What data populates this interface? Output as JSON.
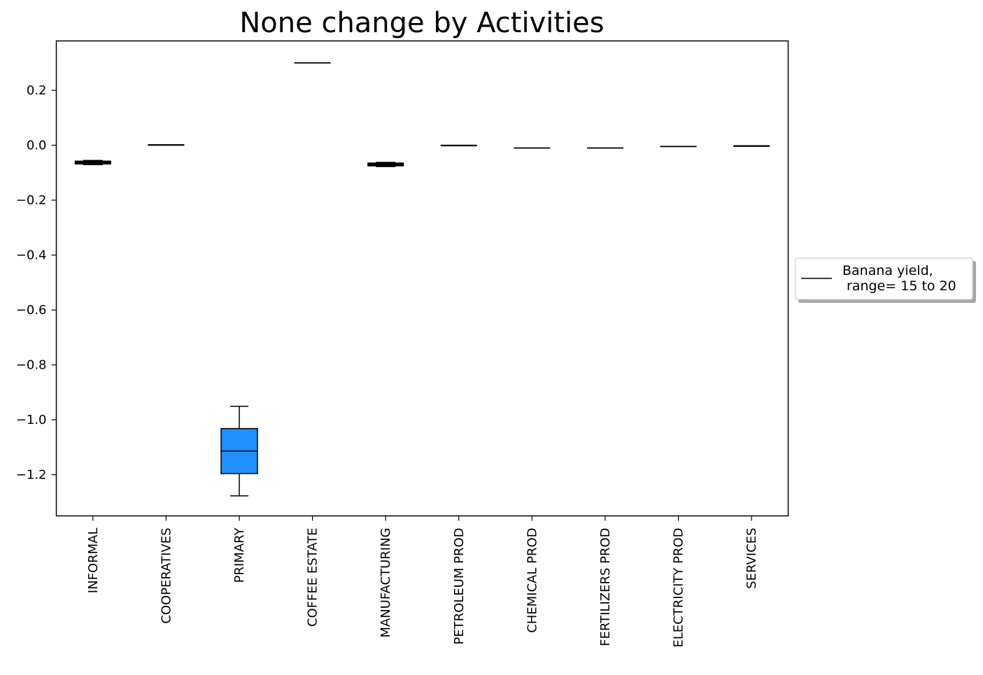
{
  "chart_data": {
    "type": "box",
    "title": "None change by Activities",
    "xlabel": "",
    "ylabel": "",
    "ylim": [
      -1.35,
      0.38
    ],
    "yticks": [
      0.2,
      0.0,
      -0.2,
      -0.4,
      -0.6,
      -0.8,
      -1.0,
      -1.2
    ],
    "ytick_labels": [
      "0.2",
      "0.0",
      "−0.2",
      "−0.4",
      "−0.6",
      "−0.8",
      "−1.0",
      "−1.2"
    ],
    "categories": [
      "INFORMAL",
      "COOPERATIVES",
      "PRIMARY",
      "COFFEE ESTATE",
      "MANUFACTURING",
      "PETROLEUM PROD",
      "CHEMICAL PROD",
      "FERTILIZERS PROD",
      "ELECTRICITY PROD",
      "SERVICES"
    ],
    "boxes": [
      {
        "category": "INFORMAL",
        "whisker_low": -0.07,
        "q1": -0.067,
        "median": -0.063,
        "q3": -0.059,
        "whisker_high": -0.056
      },
      {
        "category": "COOPERATIVES",
        "whisker_low": 0.002,
        "q1": 0.002,
        "median": 0.002,
        "q3": 0.002,
        "whisker_high": 0.002
      },
      {
        "category": "PRIMARY",
        "whisker_low": -1.277,
        "q1": -1.196,
        "median": -1.114,
        "q3": -1.032,
        "whisker_high": -0.951
      },
      {
        "category": "COFFEE ESTATE",
        "whisker_low": 0.298,
        "q1": 0.299,
        "median": 0.3,
        "q3": 0.301,
        "whisker_high": 0.302
      },
      {
        "category": "MANUFACTURING",
        "whisker_low": -0.077,
        "q1": -0.074,
        "median": -0.07,
        "q3": -0.066,
        "whisker_high": -0.063
      },
      {
        "category": "PETROLEUM PROD",
        "whisker_low": 0.0,
        "q1": 0.0,
        "median": 0.0,
        "q3": 0.0,
        "whisker_high": 0.0
      },
      {
        "category": "CHEMICAL PROD",
        "whisker_low": -0.012,
        "q1": -0.011,
        "median": -0.01,
        "q3": -0.009,
        "whisker_high": -0.008
      },
      {
        "category": "FERTILIZERS PROD",
        "whisker_low": -0.012,
        "q1": -0.011,
        "median": -0.01,
        "q3": -0.009,
        "whisker_high": -0.008
      },
      {
        "category": "ELECTRICITY PROD",
        "whisker_low": -0.005,
        "q1": -0.005,
        "median": -0.004,
        "q3": -0.004,
        "whisker_high": -0.003
      },
      {
        "category": "SERVICES",
        "whisker_low": -0.003,
        "q1": -0.003,
        "median": -0.002,
        "q3": -0.002,
        "whisker_high": -0.002
      }
    ],
    "box_color": "#1e90ff",
    "line_color": "#000000",
    "grid": false,
    "legend": {
      "placement": "right",
      "entries": [
        {
          "label_line1": "Banana yield,",
          "label_line2": " range= 15 to 20"
        }
      ]
    }
  }
}
